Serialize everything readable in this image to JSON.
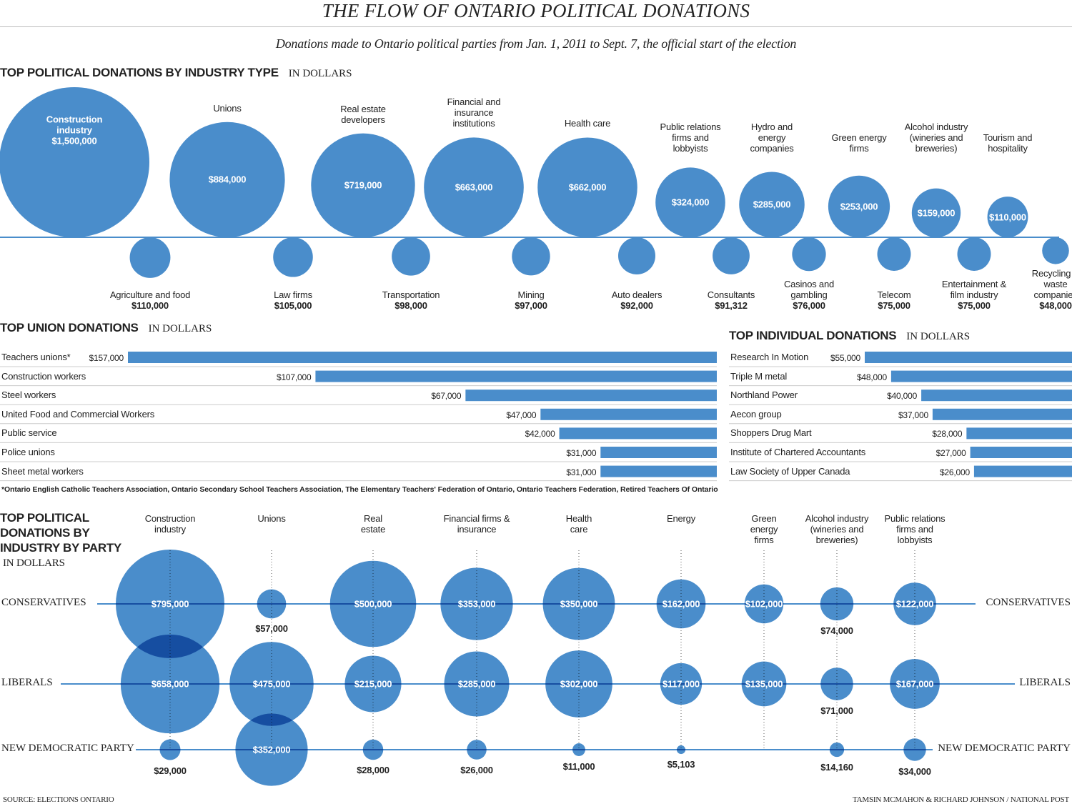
{
  "title": "THE FLOW OF ONTARIO POLITICAL DONATIONS",
  "subtitle": "Donations made to Ontario political parties from Jan. 1, 2011 to Sept. 7, the official start of the election",
  "source": "SOURCE: ELECTIONS ONTARIO",
  "credit": "TAMSIN MCMAHON & RICHARD JOHNSON / NATIONAL POST",
  "chart_data": [
    {
      "type": "bubble",
      "title": "TOP POLITICAL DONATIONS BY INDUSTRY TYPE",
      "unit": "IN DOLLARS",
      "color": "#4a8dcb",
      "categories": [
        "Construction industry",
        "Agriculture and food",
        "Unions",
        "Law firms",
        "Real estate developers",
        "Transportation",
        "Financial and insurance institutions",
        "Mining",
        "Health care",
        "Auto dealers",
        "Public relations firms and lobbyists",
        "Consultants",
        "Hydro and energy companies",
        "Casinos and gambling",
        "Green energy firms",
        "Telecom",
        "Alcohol industry (wineries and breweries)",
        "Entertainment & film industry",
        "Tourism and hospitality",
        "Recycling & waste companies"
      ],
      "values": [
        1500000,
        110000,
        884000,
        105000,
        719000,
        98000,
        663000,
        97000,
        662000,
        92000,
        324000,
        91312,
        285000,
        76000,
        253000,
        75000,
        159000,
        75000,
        110000,
        48000
      ],
      "value_labels": [
        "$1,500,000",
        "$110,000",
        "$884,000",
        "$105,000",
        "$719,000",
        "$98,000",
        "$663,000",
        "$97,000",
        "$662,000",
        "$92,000",
        "$324,000",
        "$91,312",
        "$285,000",
        "$76,000",
        "$253,000",
        "$75,000",
        "$159,000",
        "$75,000",
        "$110,000",
        "$48,000"
      ]
    },
    {
      "type": "bar",
      "orientation": "horizontal",
      "title": "TOP UNION DONATIONS",
      "unit": "IN DOLLARS",
      "color": "#4a8dcb",
      "categories": [
        "Teachers unions*",
        "Construction workers",
        "Steel workers",
        "United Food and Commercial Workers",
        "Public service",
        "Police unions",
        "Sheet metal workers"
      ],
      "values": [
        157000,
        107000,
        67000,
        47000,
        42000,
        31000,
        31000
      ],
      "value_labels": [
        "$157,000",
        "$107,000",
        "$67,000",
        "$47,000",
        "$42,000",
        "$31,000",
        "$31,000"
      ],
      "note": "*Ontario English Catholic Teachers Association, Ontario Secondary School Teachers Association, The Elementary Teachers' Federation of Ontario, Ontario Teachers Federation, Retired Teachers Of Ontario"
    },
    {
      "type": "bar",
      "orientation": "horizontal",
      "title": "TOP INDIVIDUAL DONATIONS",
      "unit": "IN DOLLARS",
      "color": "#4a8dcb",
      "categories": [
        "Research In Motion",
        "Triple M metal",
        "Northland Power",
        "Aecon group",
        "Shoppers Drug Mart",
        "Institute of Chartered Accountants",
        "Law Society of Upper Canada"
      ],
      "values": [
        55000,
        48000,
        40000,
        37000,
        28000,
        27000,
        26000
      ],
      "value_labels": [
        "$55,000",
        "$48,000",
        "$40,000",
        "$37,000",
        "$28,000",
        "$27,000",
        "$26,000"
      ]
    },
    {
      "type": "bubble",
      "title": "TOP POLITICAL DONATIONS BY INDUSTRY BY PARTY",
      "unit": "IN DOLLARS",
      "categories": [
        "Construction industry",
        "Unions",
        "Real estate",
        "Financial firms & insurance",
        "Health care",
        "Energy",
        "Green energy firms",
        "Alcohol industry (wineries and breweries)",
        "Public relations firms and lobbyists"
      ],
      "series": [
        {
          "name": "CONSERVATIVES",
          "color": "#4a8dcb",
          "values": [
            795000,
            57000,
            500000,
            353000,
            350000,
            162000,
            102000,
            74000,
            122000
          ],
          "value_labels": [
            "$795,000",
            "$57,000",
            "$500,000",
            "$353,000",
            "$350,000",
            "$162,000",
            "$102,000",
            "$74,000",
            "$122,000"
          ]
        },
        {
          "name": "LIBERALS",
          "color": "#4a8dcb",
          "values": [
            658000,
            475000,
            215000,
            285000,
            302000,
            117000,
            135000,
            71000,
            167000
          ],
          "value_labels": [
            "$658,000",
            "$475,000",
            "$215,000",
            "$285,000",
            "$302,000",
            "$117,000",
            "$135,000",
            "$71,000",
            "$167,000"
          ]
        },
        {
          "name": "NEW DEMOCRATIC PARTY",
          "color": "#4a8dcb",
          "values": [
            29000,
            352000,
            28000,
            26000,
            11000,
            5103,
            null,
            14160,
            34000
          ],
          "value_labels": [
            "$29,000",
            "$352,000",
            "$28,000",
            "$26,000",
            "$11,000",
            "$5,103",
            null,
            "$14,160",
            "$34,000"
          ]
        }
      ]
    }
  ]
}
